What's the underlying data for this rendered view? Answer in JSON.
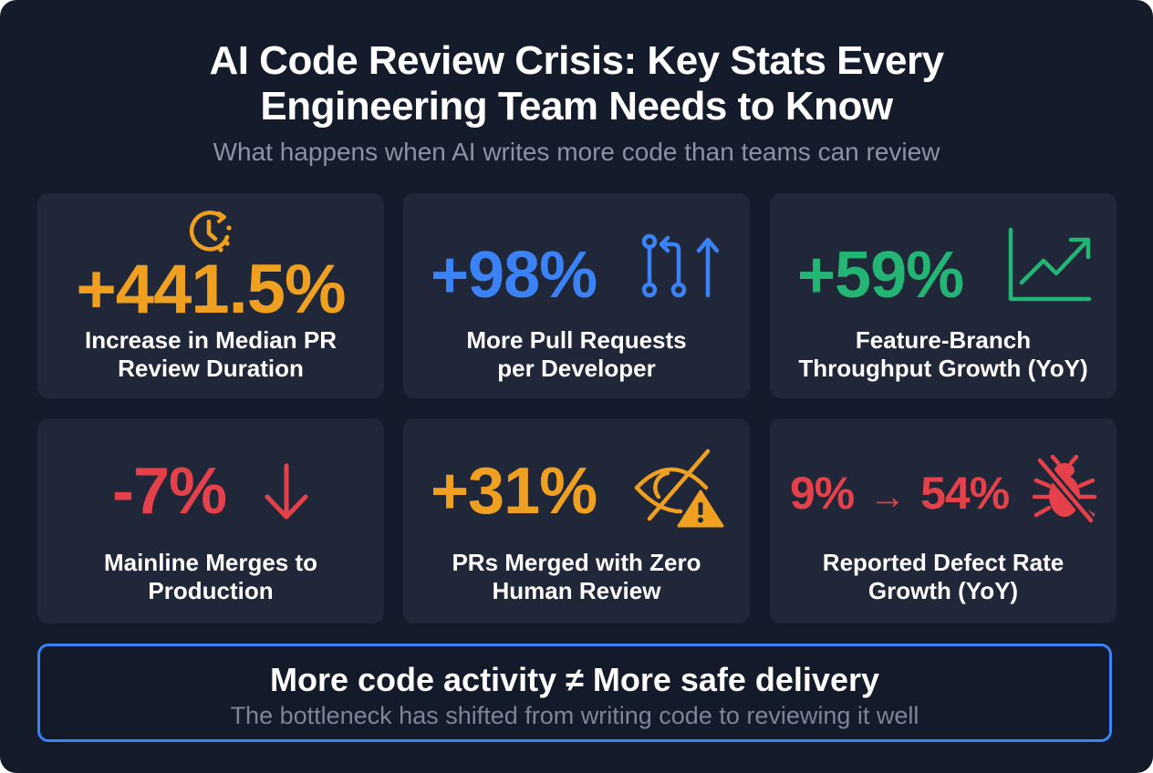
{
  "header": {
    "title_line1": "AI Code Review Crisis: Key Stats Every",
    "title_line2": "Engineering Team Needs to Know",
    "subtitle": "What happens when AI writes more code than teams can review"
  },
  "colors": {
    "background": "#141b2b",
    "card": "#1f2738",
    "orange": "#f0a020",
    "blue": "#3b82f6",
    "green": "#22b573",
    "red": "#e5414b"
  },
  "stats": [
    {
      "value": "+441.5%",
      "label_line1": "Increase in Median PR",
      "label_line2": "Review Duration",
      "icon": "clock-icon"
    },
    {
      "value": "+98%",
      "label_line1": "More Pull Requests",
      "label_line2": "per Developer",
      "icon": "pull-request-icon"
    },
    {
      "value": "+59%",
      "label_line1": "Feature-Branch",
      "label_line2": "Throughput Growth (YoY)",
      "icon": "trend-up-chart-icon"
    },
    {
      "value": "-7%",
      "label_line1": "Mainline Merges to",
      "label_line2": "Production",
      "icon": "arrow-down-icon"
    },
    {
      "value": "+31%",
      "label_line1": "PRs Merged with Zero",
      "label_line2": "Human Review",
      "icon": "eye-slash-warning-icon"
    },
    {
      "value_from": "9%",
      "arrow": "→",
      "value_to": "54%",
      "label_line1": "Reported Defect Rate",
      "label_line2": "Growth (YoY)",
      "icon": "bug-slash-icon"
    }
  ],
  "callout": {
    "headline": "More code activity ≠ More safe delivery",
    "sub": "The bottleneck has shifted from writing code to reviewing it well"
  }
}
